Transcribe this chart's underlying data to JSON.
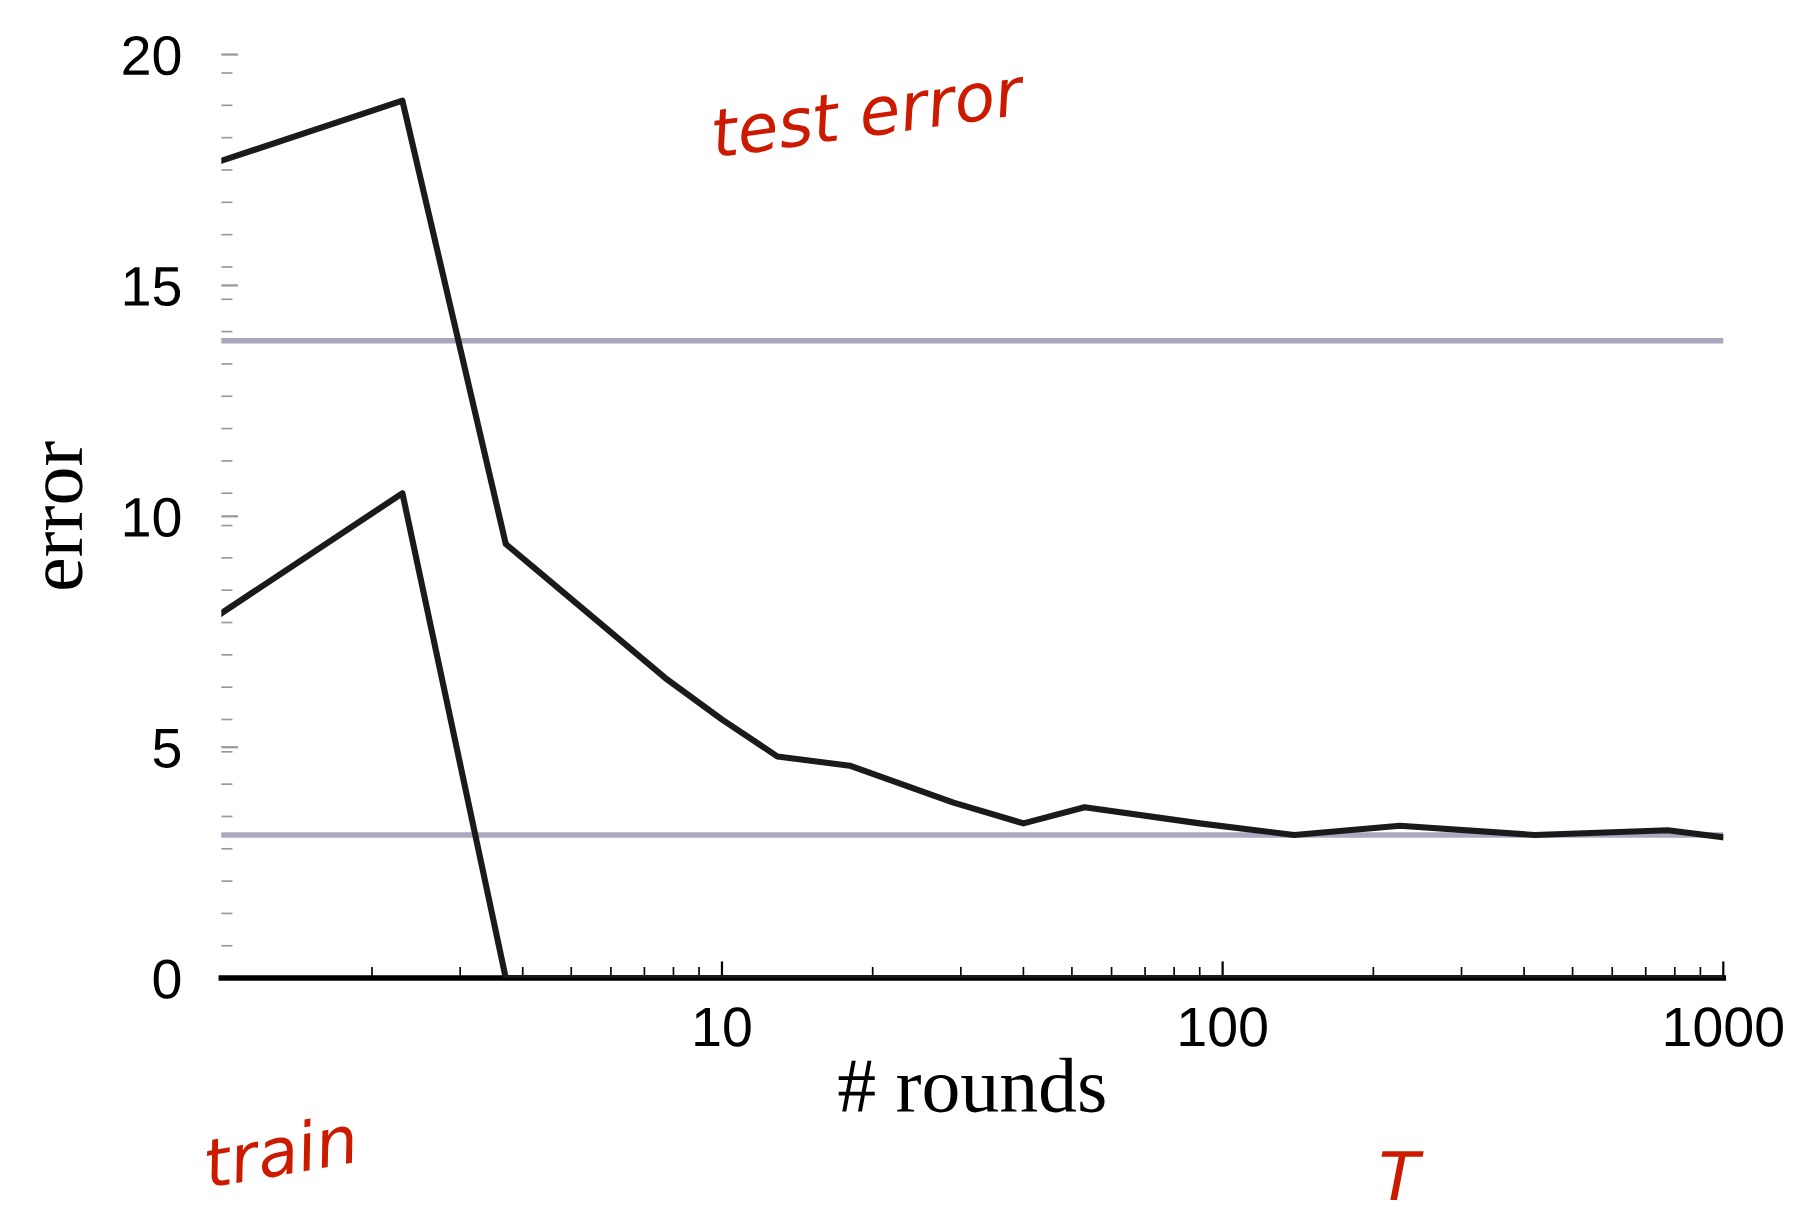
{
  "chart_data": {
    "type": "line",
    "xlabel": "# rounds",
    "ylabel": "error",
    "log": "x",
    "xlim": [
      1,
      1000
    ],
    "ylim": [
      0,
      20
    ],
    "xticks": [
      10,
      100,
      1000
    ],
    "yticks": [
      0,
      5,
      10,
      15,
      20
    ],
    "grid": false,
    "legend": false,
    "marker": "none",
    "line_style": "solid",
    "series": [
      {
        "color": "#1a1a1a",
        "x": [
          1,
          2.3,
          3.7,
          4.2,
          7.7,
          10,
          12.9,
          18,
          29,
          40,
          53,
          90,
          139,
          226,
          420,
          775,
          1000
        ],
        "values": [
          17.7,
          19.0,
          9.4,
          8.9,
          6.5,
          5.6,
          4.8,
          4.6,
          3.8,
          3.35,
          3.7,
          3.35,
          3.1,
          3.3,
          3.1,
          3.2,
          3.05
        ]
      },
      {
        "color": "#1a1a1a",
        "x": [
          1,
          2.3,
          3.7,
          1000
        ],
        "values": [
          7.9,
          10.5,
          0,
          0
        ]
      }
    ],
    "ref_lines": [
      {
        "axis": "y",
        "value": 13.8,
        "color": "#a8a8c0"
      },
      {
        "axis": "y",
        "value": 3.1,
        "color": "#a8a8c0"
      }
    ],
    "annotations": [
      "test error",
      "train",
      "T"
    ]
  }
}
